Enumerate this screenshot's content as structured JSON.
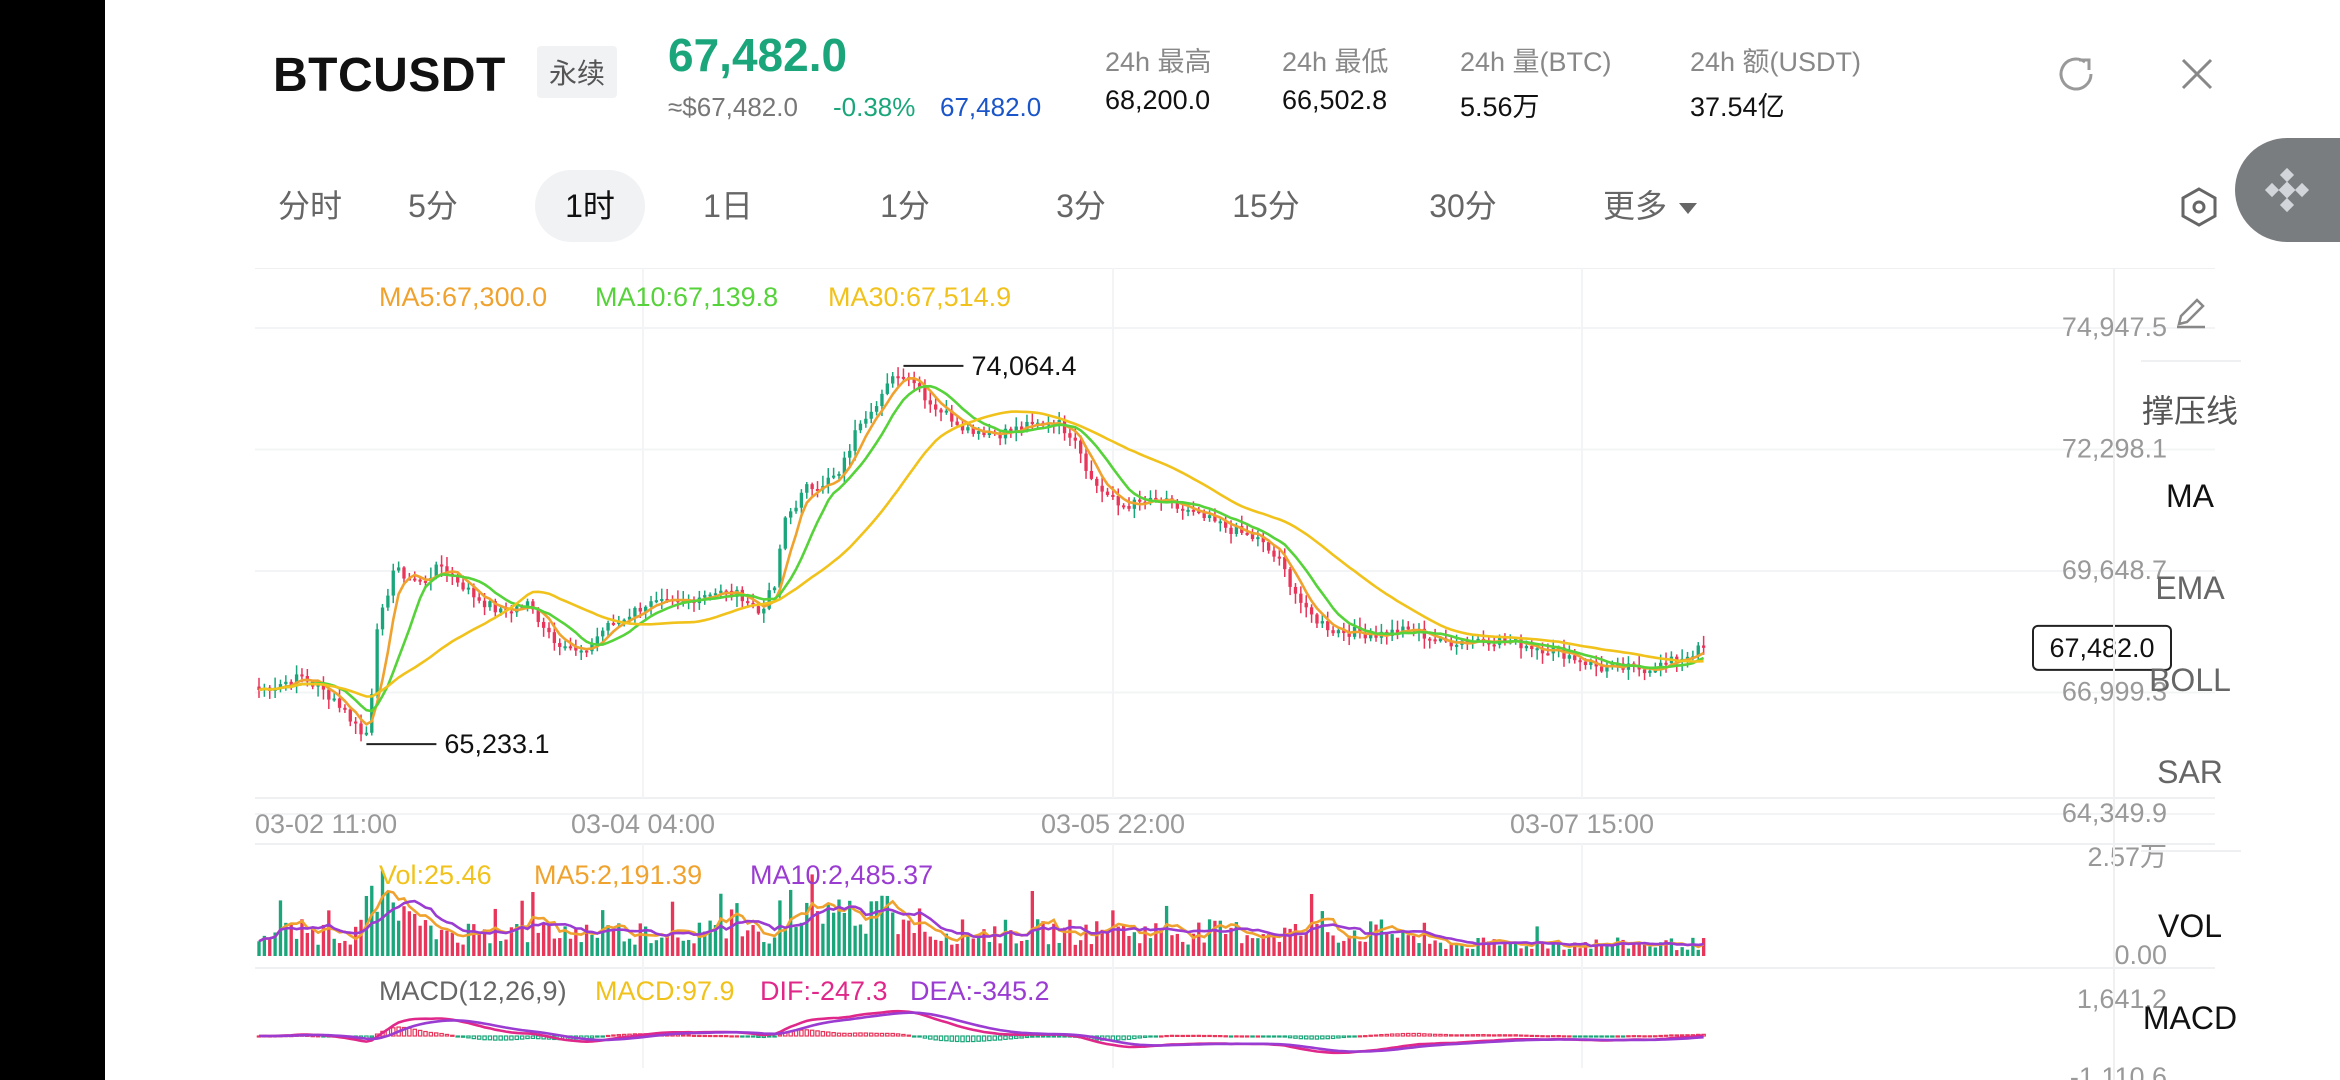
{
  "header": {
    "symbol": "BTCUSDT",
    "contract_type": "永续",
    "last_price": "67,482.0",
    "usd_price": "≈$67,482.0",
    "change_pct": "-0.38%",
    "mark_price": "67,482.0",
    "stats": [
      {
        "label": "24h  最高",
        "value": "68,200.0"
      },
      {
        "label": "24h  最低",
        "value": "66,502.8"
      },
      {
        "label": "24h  量(BTC)",
        "value": "5.56万"
      },
      {
        "label": "24h  额(USDT)",
        "value": "37.54亿"
      }
    ]
  },
  "tabs": [
    {
      "label": "分时",
      "active": false
    },
    {
      "label": "5分",
      "active": false
    },
    {
      "label": "1时",
      "active": true
    },
    {
      "label": "1日",
      "active": false
    },
    {
      "label": "1分",
      "active": false
    },
    {
      "label": "3分",
      "active": false
    },
    {
      "label": "15分",
      "active": false
    },
    {
      "label": "30分",
      "active": false
    },
    {
      "label": "更多",
      "active": false
    }
  ],
  "side_panel": {
    "draw_icon": "pencil-icon",
    "items": [
      "撑压线",
      "MA",
      "EMA",
      "BOLL",
      "SAR",
      "VOL",
      "MACD"
    ]
  },
  "legends": {
    "ma5": "MA5:67,300.0",
    "ma10": "MA10:67,139.8",
    "ma30": "MA30:67,514.9",
    "vol": "Vol:25.46",
    "vol_ma5": "MA5:2,191.39",
    "vol_ma10": "MA10:2,485.37",
    "macd_title": "MACD(12,26,9)",
    "macd": "MACD:97.9",
    "dif": "DIF:-247.3",
    "dea": "DEA:-345.2"
  },
  "colors": {
    "up": "#1aa67a",
    "down": "#e8355a",
    "ma5": "#f0a22e",
    "ma10": "#56d23a",
    "ma30": "#f1c21b",
    "macd_dif": "#e0288a",
    "macd_dea": "#9a3bd1",
    "mark": "#1a55c9"
  },
  "chart_data": {
    "type": "candlestick",
    "price_axis_labels": [
      "74,947.5",
      "72,298.1",
      "69,648.7",
      "66,999.3",
      "64,349.9"
    ],
    "ylim": [
      64349.9,
      74947.5
    ],
    "x_tick_labels": [
      "03-02 11:00",
      "03-04 04:00",
      "03-05 22:00",
      "03-07 15:00"
    ],
    "current_price_label": "67,482.0",
    "high_marker": "74,064.4",
    "low_marker": "65,233.1",
    "close_path": [
      [
        0,
        66500
      ],
      [
        8,
        66800
      ],
      [
        14,
        66300
      ],
      [
        18,
        65700
      ],
      [
        20,
        65233
      ],
      [
        22,
        67800
      ],
      [
        25,
        69300
      ],
      [
        30,
        69000
      ],
      [
        34,
        69400
      ],
      [
        40,
        68700
      ],
      [
        45,
        68300
      ],
      [
        50,
        68500
      ],
      [
        55,
        67700
      ],
      [
        60,
        67300
      ],
      [
        64,
        67900
      ],
      [
        68,
        68200
      ],
      [
        72,
        68500
      ],
      [
        78,
        68500
      ],
      [
        84,
        68800
      ],
      [
        90,
        68700
      ],
      [
        93,
        68300
      ],
      [
        96,
        68900
      ],
      [
        98,
        70500
      ],
      [
        102,
        71200
      ],
      [
        108,
        71500
      ],
      [
        112,
        72800
      ],
      [
        116,
        73400
      ],
      [
        120,
        74064
      ],
      [
        125,
        73200
      ],
      [
        132,
        72600
      ],
      [
        138,
        72500
      ],
      [
        145,
        72700
      ],
      [
        148,
        72800
      ],
      [
        152,
        72400
      ],
      [
        155,
        71400
      ],
      [
        160,
        70800
      ],
      [
        168,
        70900
      ],
      [
        174,
        70600
      ],
      [
        180,
        70300
      ],
      [
        186,
        70000
      ],
      [
        190,
        69500
      ],
      [
        195,
        68300
      ],
      [
        200,
        67900
      ],
      [
        208,
        67800
      ],
      [
        215,
        67900
      ],
      [
        220,
        67600
      ],
      [
        228,
        67700
      ],
      [
        234,
        67600
      ],
      [
        242,
        67400
      ],
      [
        250,
        67000
      ],
      [
        258,
        67000
      ],
      [
        262,
        67100
      ],
      [
        269,
        67482
      ]
    ],
    "volume_axis_labels": [
      "2.57万",
      "0.00"
    ],
    "macd_axis_labels": [
      "1,641.2",
      "-1,110.6"
    ]
  }
}
